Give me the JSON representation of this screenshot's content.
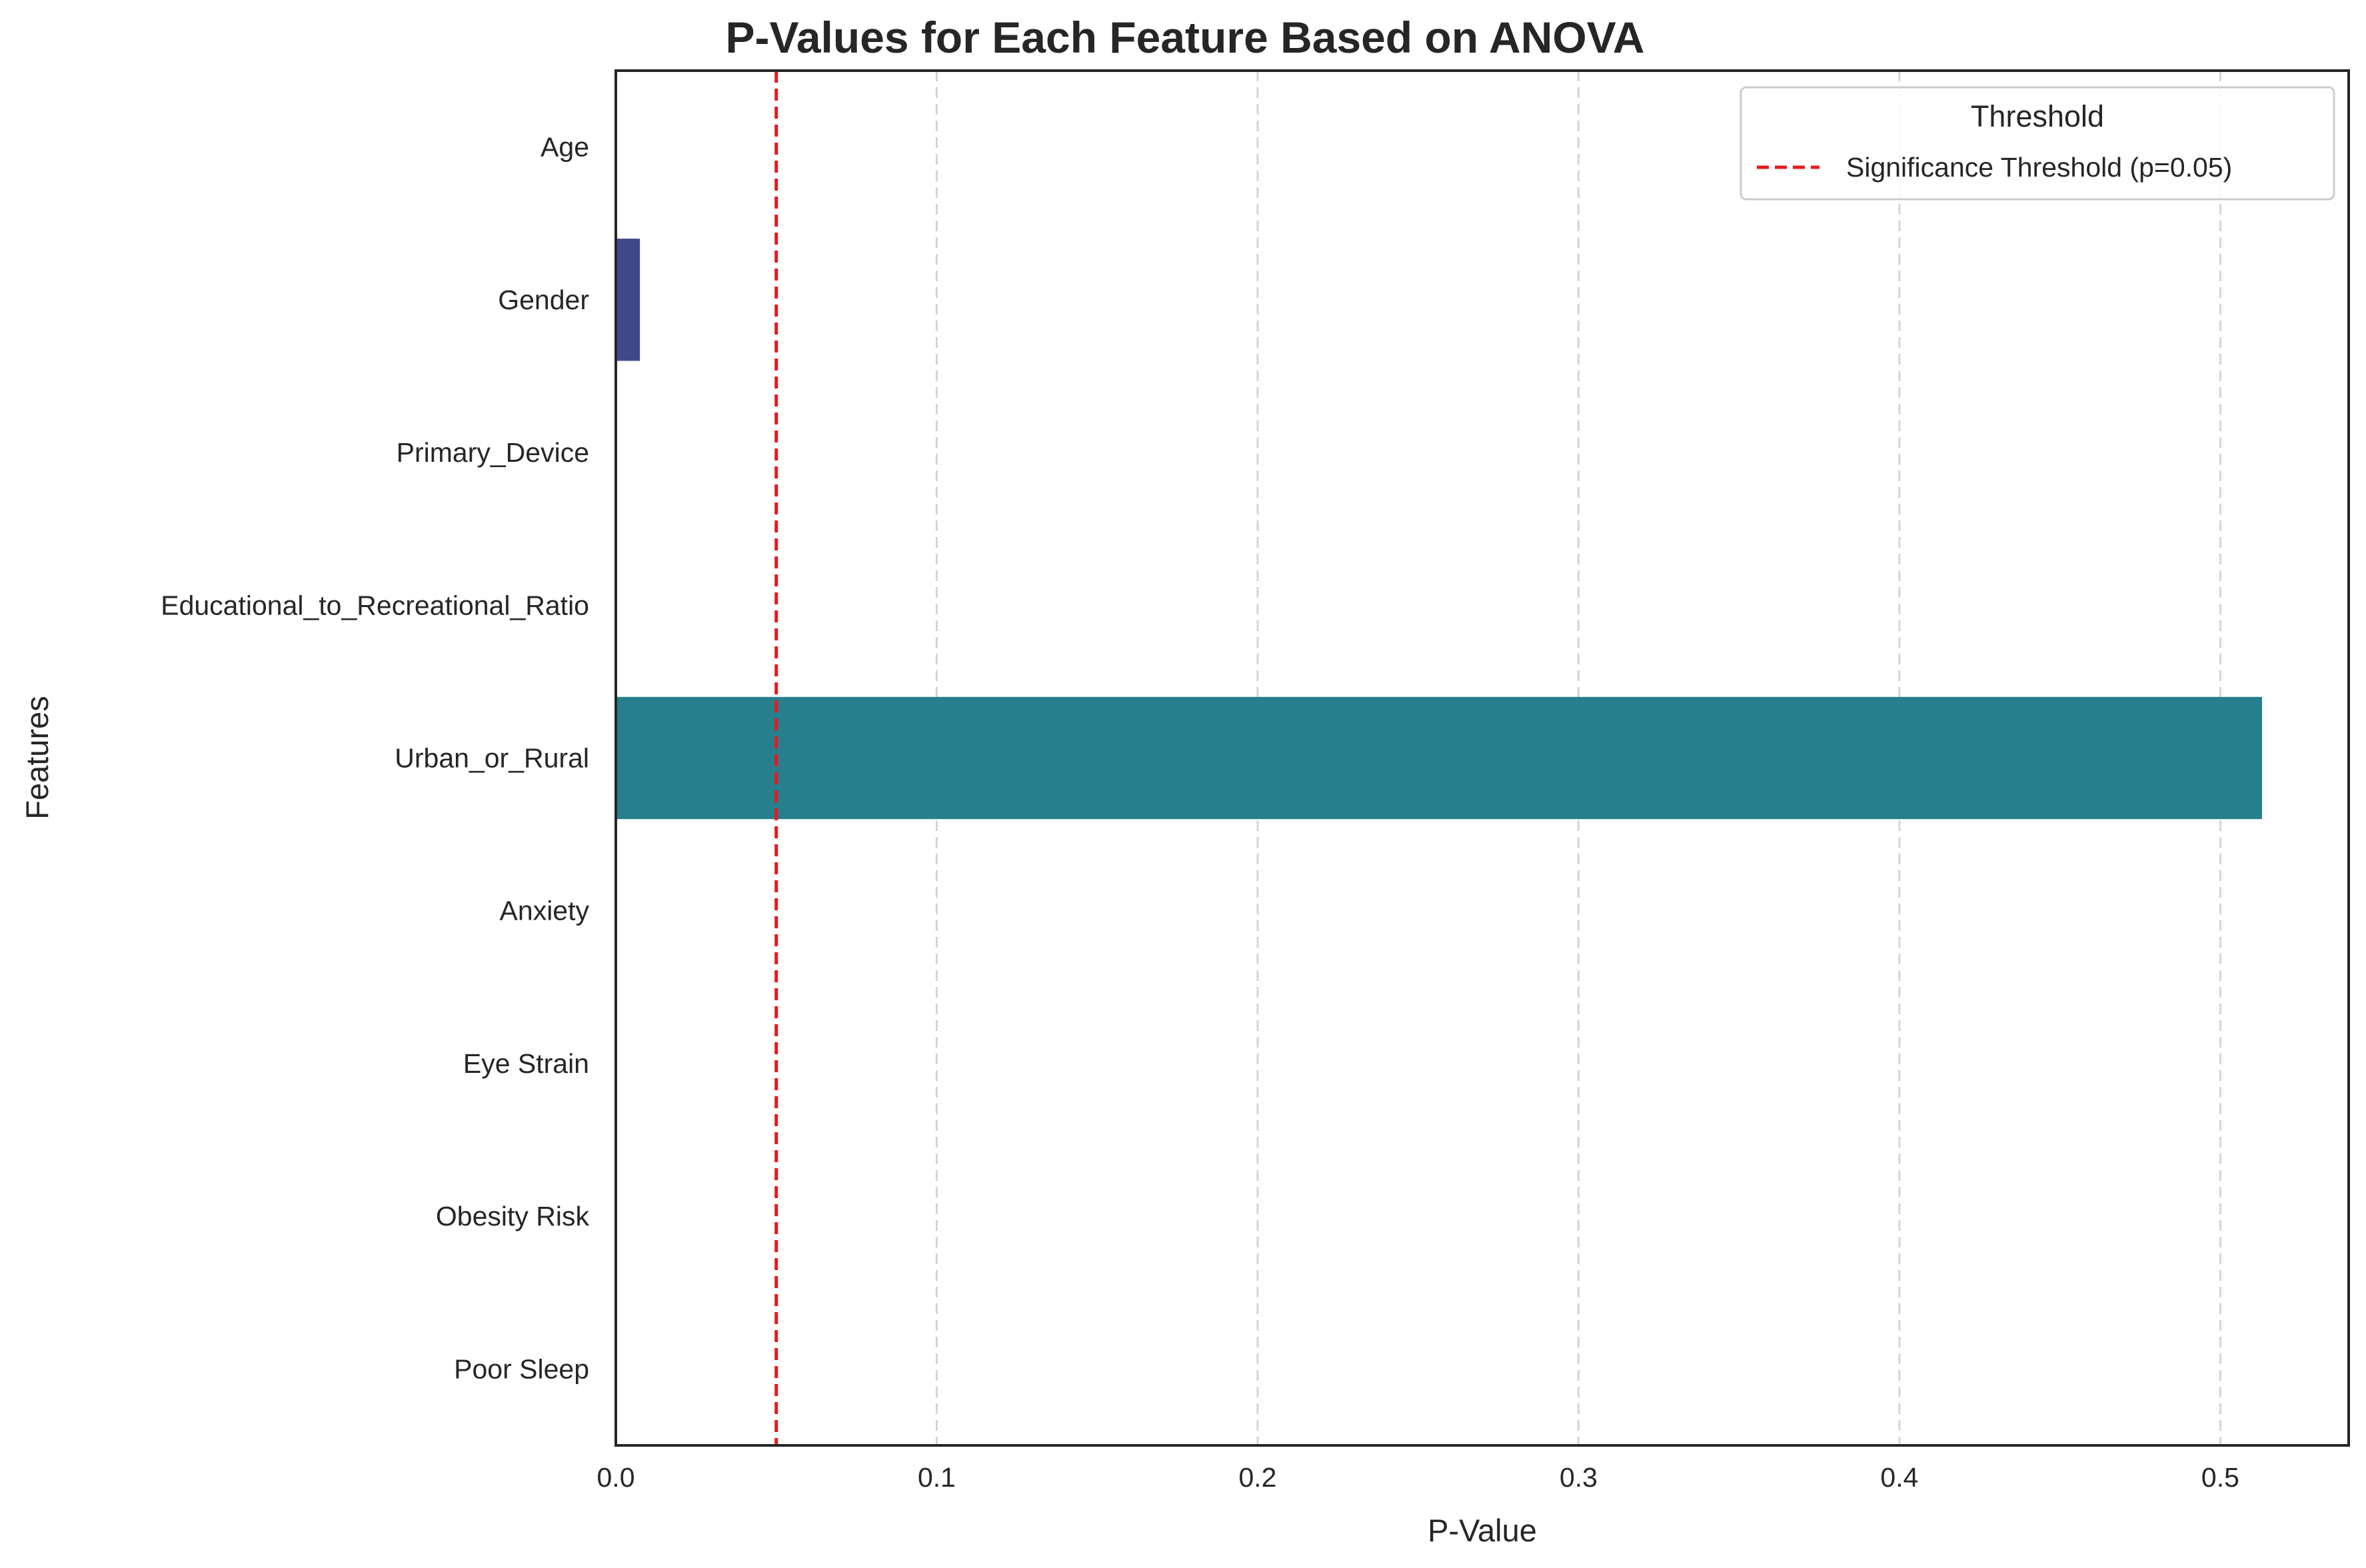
{
  "chart_data": {
    "type": "bar",
    "orientation": "horizontal",
    "title": "P-Values for Each Feature Based on ANOVA",
    "xlabel": "P-Value",
    "ylabel": "Features",
    "xlim": [
      0,
      0.54
    ],
    "xticks": [
      "0.0",
      "0.1",
      "0.2",
      "0.3",
      "0.4",
      "0.5"
    ],
    "xtick_values": [
      0,
      0.1,
      0.2,
      0.3,
      0.4,
      0.5
    ],
    "grid": "vertical dashed",
    "categories": [
      "Age",
      "Gender",
      "Primary_Device",
      "Educational_to_Recreational_Ratio",
      "Urban_or_Rural",
      "Anxiety",
      "Eye Strain",
      "Obesity Risk",
      "Poor Sleep"
    ],
    "values": [
      0.0,
      0.0075,
      0.0,
      0.0,
      0.513,
      0.0,
      0.0,
      0.0,
      0.0
    ],
    "bar_colors": [
      "#46337e",
      "#3e4989",
      "#365d8d",
      "#2c718e",
      "#277f8e",
      "#21918c",
      "#2ab07f",
      "#52c569",
      "#86d549"
    ],
    "threshold": {
      "value": 0.05,
      "label": "Significance Threshold (p=0.05)",
      "color": "#e8191c",
      "style": "dashed"
    },
    "legend": {
      "title": "Threshold",
      "placement": "top-right"
    }
  }
}
